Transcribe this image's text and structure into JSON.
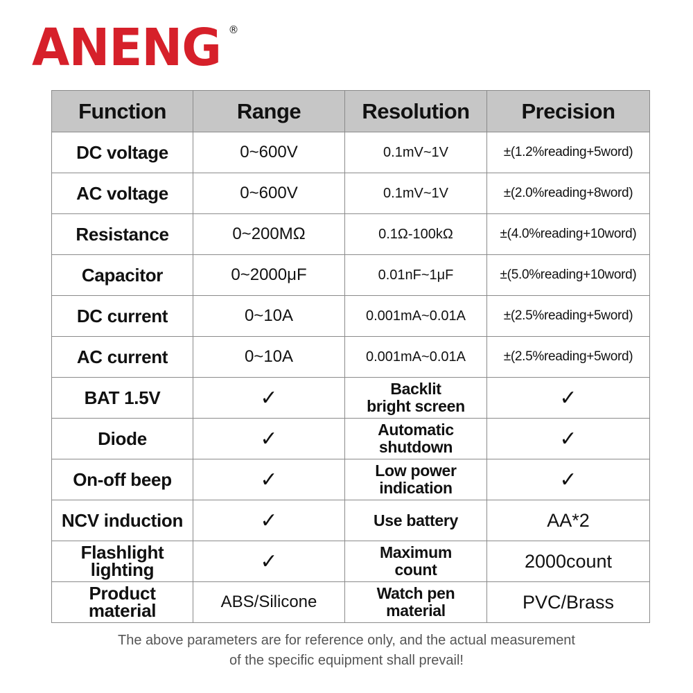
{
  "brand": {
    "name": "ANENG",
    "mark": "®",
    "color": "#d6202a"
  },
  "table": {
    "headers": [
      "Function",
      "Range",
      "Resolution",
      "Precision"
    ],
    "rows": [
      {
        "function": "DC voltage",
        "range": "0~600V",
        "resolution": "0.1mV~1V",
        "precision": "±(1.2%reading+5word)"
      },
      {
        "function": "AC voltage",
        "range": "0~600V",
        "resolution": "0.1mV~1V",
        "precision": "±(2.0%reading+8word)"
      },
      {
        "function": "Resistance",
        "range": "0~200MΩ",
        "resolution": "0.1Ω-100kΩ",
        "precision": "±(4.0%reading+10word)"
      },
      {
        "function": "Capacitor",
        "range": "0~2000μF",
        "resolution": "0.01nF~1μF",
        "precision": "±(5.0%reading+10word)"
      },
      {
        "function": "DC current",
        "range": "0~10A",
        "resolution": "0.001mA~0.01A",
        "precision": "±(2.5%reading+5word)"
      },
      {
        "function": "AC current",
        "range": "0~10A",
        "resolution": "0.001mA~0.01A",
        "precision": "±(2.5%reading+5word)"
      }
    ],
    "features": [
      {
        "left_label": "BAT 1.5V",
        "left_value": "✓",
        "right_label": "Backlit\nbright screen",
        "right_value": "✓"
      },
      {
        "left_label": "Diode",
        "left_value": "✓",
        "right_label": "Automatic\nshutdown",
        "right_value": "✓"
      },
      {
        "left_label": "On-off beep",
        "left_value": "✓",
        "right_label": "Low power\nindication",
        "right_value": "✓"
      },
      {
        "left_label": "NCV induction",
        "left_value": "✓",
        "right_label": "Use battery",
        "right_value": "AA*2"
      },
      {
        "left_label": "Flashlight\nlighting",
        "left_value": "✓",
        "right_label": "Maximum\ncount",
        "right_value": "2000count"
      },
      {
        "left_label": "Product\nmaterial",
        "left_value": "ABS/Silicone",
        "right_label": "Watch pen\nmaterial",
        "right_value": "PVC/Brass"
      }
    ]
  },
  "footnote": {
    "line1": "The above parameters are for reference only, and the actual measurement",
    "line2": "of the specific equipment shall prevail!"
  }
}
